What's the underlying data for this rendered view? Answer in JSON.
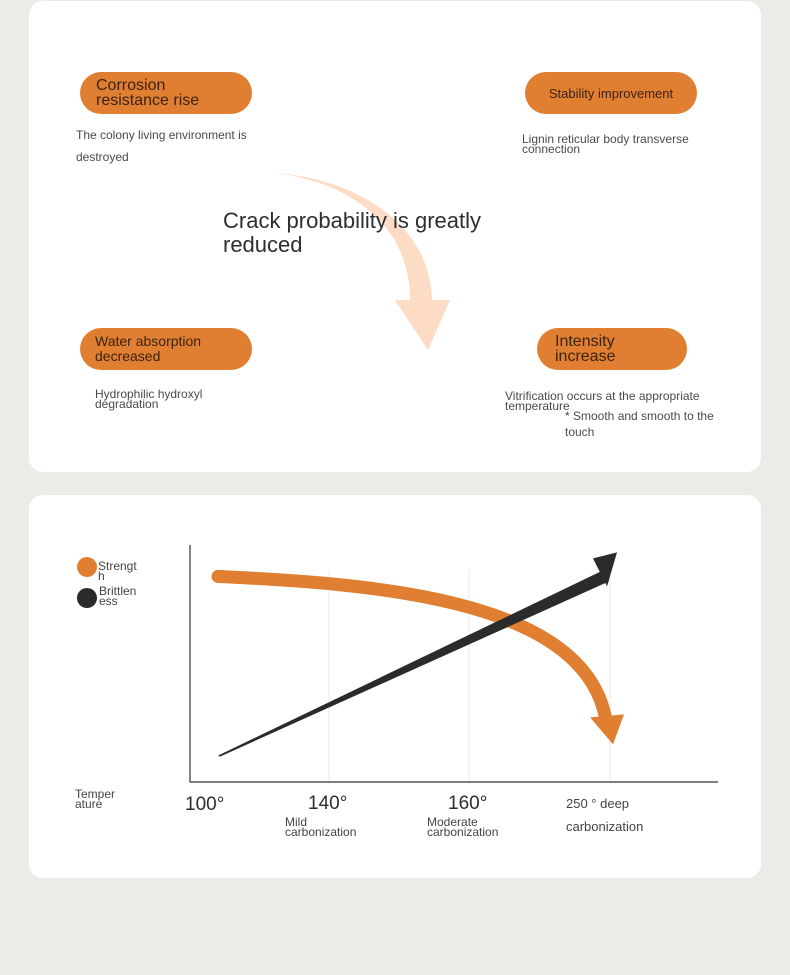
{
  "benefits": {
    "corrosion": {
      "title": "Corrosion\nresistance rise",
      "desc": "The colony living environment is destroyed"
    },
    "stability": {
      "title": "Stability improvement",
      "desc": "Lignin reticular body transverse\nconnection"
    },
    "water": {
      "title": "Water absorption\ndecreased",
      "desc": "Hydrophilic hydroxyl\ndegradation"
    },
    "intensity": {
      "title": "Intensity\nincrease",
      "desc": "Vitrification occurs at the appropriate\ntemperature",
      "note": "* Smooth and smooth to the touch"
    }
  },
  "center_claim": "Crack probability is greatly reduced",
  "colors": {
    "accent": "#e07f32",
    "dark": "#2b2b2b",
    "arrow_light": "#fbd3b6"
  },
  "chart_data": {
    "type": "line",
    "xlabel": "Temperature",
    "ylabel": "",
    "x": [
      "100°",
      "140°",
      "160°",
      "250 ° deep carbonization"
    ],
    "x_sub": [
      "",
      "Mild\ncarbonization",
      "Moderate\ncarbonization",
      ""
    ],
    "series": [
      {
        "name": "Strength",
        "color": "#e07f32",
        "trend": "decreasing",
        "values": [
          0.92,
          0.86,
          0.72,
          0.12
        ]
      },
      {
        "name": "Brittleness",
        "color": "#2b2b2b",
        "trend": "increasing",
        "values": [
          0.08,
          0.36,
          0.62,
          0.92
        ]
      }
    ],
    "grid": "vertical",
    "legend": "top-left"
  }
}
